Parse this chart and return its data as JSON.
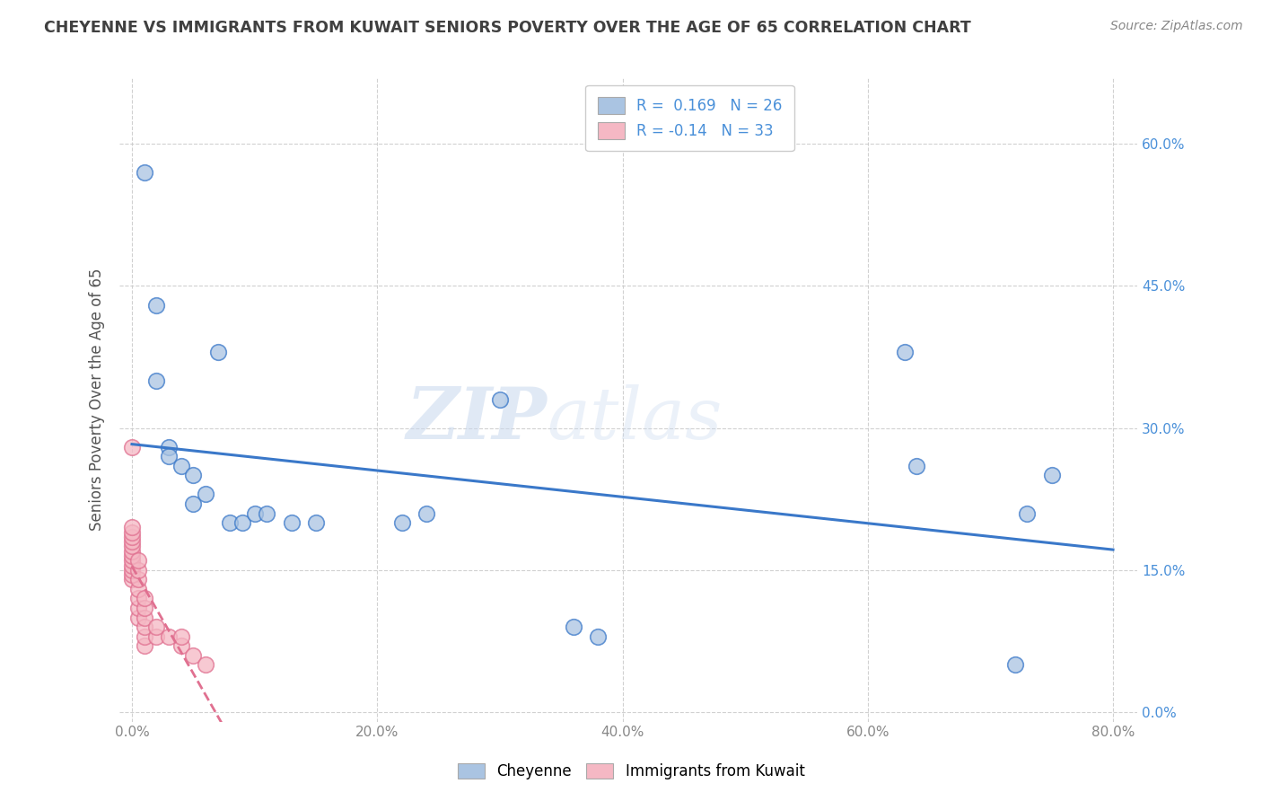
{
  "title": "CHEYENNE VS IMMIGRANTS FROM KUWAIT SENIORS POVERTY OVER THE AGE OF 65 CORRELATION CHART",
  "source": "Source: ZipAtlas.com",
  "ylabel": "Seniors Poverty Over the Age of 65",
  "xlim": [
    -0.01,
    0.82
  ],
  "ylim": [
    -0.01,
    0.67
  ],
  "xticks": [
    0.0,
    0.2,
    0.4,
    0.6,
    0.8
  ],
  "yticks": [
    0.0,
    0.15,
    0.3,
    0.45,
    0.6
  ],
  "xtick_labels": [
    "0.0%",
    "20.0%",
    "40.0%",
    "60.0%",
    "80.0%"
  ],
  "ytick_labels": [
    "0.0%",
    "15.0%",
    "30.0%",
    "45.0%",
    "60.0%"
  ],
  "cheyenne_color": "#aac4e2",
  "kuwait_color": "#f5b8c4",
  "trend_cheyenne_color": "#3a78c9",
  "trend_kuwait_color": "#e07090",
  "cheyenne_R": 0.169,
  "cheyenne_N": 26,
  "kuwait_R": -0.14,
  "kuwait_N": 33,
  "legend_label_cheyenne": "Cheyenne",
  "legend_label_kuwait": "Immigrants from Kuwait",
  "watermark_zip": "ZIP",
  "watermark_atlas": "atlas",
  "cheyenne_x": [
    0.01,
    0.02,
    0.02,
    0.03,
    0.03,
    0.04,
    0.05,
    0.05,
    0.06,
    0.07,
    0.08,
    0.09,
    0.1,
    0.11,
    0.13,
    0.15,
    0.22,
    0.24,
    0.3,
    0.36,
    0.38,
    0.63,
    0.64,
    0.72,
    0.73,
    0.75
  ],
  "cheyenne_y": [
    0.57,
    0.43,
    0.35,
    0.28,
    0.27,
    0.26,
    0.25,
    0.22,
    0.23,
    0.38,
    0.2,
    0.2,
    0.21,
    0.21,
    0.2,
    0.2,
    0.2,
    0.21,
    0.33,
    0.09,
    0.08,
    0.38,
    0.26,
    0.05,
    0.21,
    0.25
  ],
  "kuwait_x": [
    0.0,
    0.0,
    0.0,
    0.0,
    0.0,
    0.0,
    0.0,
    0.0,
    0.0,
    0.0,
    0.0,
    0.0,
    0.0,
    0.005,
    0.005,
    0.005,
    0.005,
    0.005,
    0.005,
    0.005,
    0.01,
    0.01,
    0.01,
    0.01,
    0.01,
    0.01,
    0.02,
    0.02,
    0.03,
    0.04,
    0.04,
    0.05,
    0.06
  ],
  "kuwait_y": [
    0.14,
    0.145,
    0.15,
    0.155,
    0.16,
    0.165,
    0.17,
    0.175,
    0.18,
    0.185,
    0.19,
    0.195,
    0.28,
    0.1,
    0.11,
    0.12,
    0.13,
    0.14,
    0.15,
    0.16,
    0.07,
    0.08,
    0.09,
    0.1,
    0.11,
    0.12,
    0.08,
    0.09,
    0.08,
    0.07,
    0.08,
    0.06,
    0.05
  ],
  "background_color": "#ffffff",
  "grid_color": "#cccccc",
  "title_color": "#404040",
  "axis_label_color": "#555555",
  "right_tick_color": "#4a90d9"
}
